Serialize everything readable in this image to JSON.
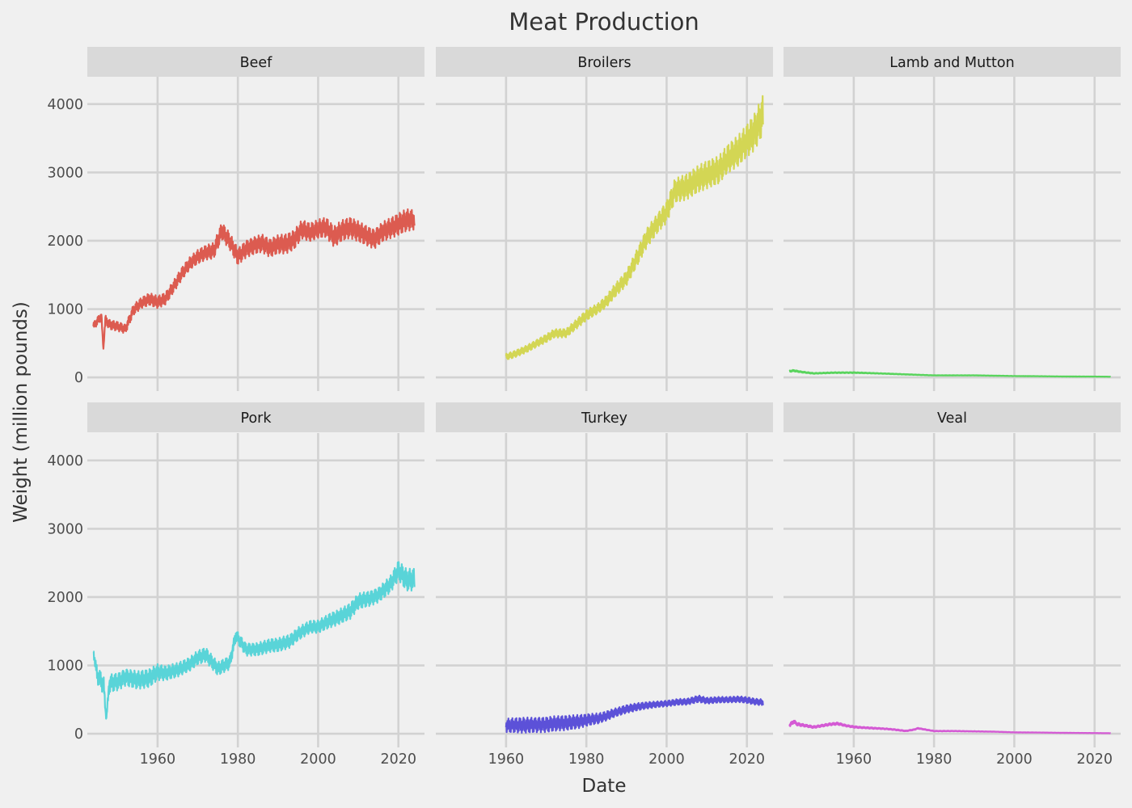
{
  "chart_data": {
    "type": "line",
    "title": "Meat Production",
    "xlabel": "Date",
    "ylabel": "Weight (million pounds)",
    "x_ticks": [
      1960,
      1980,
      2000,
      2020
    ],
    "y_ticks": [
      0,
      1000,
      2000,
      3000,
      4000
    ],
    "xlim": [
      1942.5,
      2026.5
    ],
    "ylim": [
      -200,
      4400
    ],
    "grid": true,
    "legend": "none",
    "facets": [
      {
        "name": "Beef",
        "color": "#dc5b50",
        "x": [
          1944,
          1946,
          1946.5,
          1947,
          1948,
          1950,
          1952,
          1954,
          1956,
          1958,
          1960,
          1962,
          1964,
          1966,
          1968,
          1970,
          1972,
          1974,
          1976,
          1978,
          1980,
          1982,
          1984,
          1986,
          1988,
          1990,
          1992,
          1994,
          1996,
          1998,
          2000,
          2002,
          2004,
          2006,
          2008,
          2010,
          2012,
          2014,
          2016,
          2018,
          2020,
          2022,
          2024
        ],
        "y": [
          750,
          900,
          420,
          850,
          780,
          760,
          720,
          1000,
          1100,
          1150,
          1100,
          1150,
          1320,
          1500,
          1650,
          1750,
          1820,
          1850,
          2150,
          2000,
          1780,
          1900,
          1950,
          1980,
          1900,
          1950,
          1950,
          2000,
          2150,
          2100,
          2150,
          2180,
          2050,
          2150,
          2200,
          2150,
          2100,
          2050,
          2150,
          2200,
          2250,
          2300,
          2300
        ],
        "amplitude": [
          60,
          70,
          0,
          70,
          80,
          80,
          80,
          90,
          90,
          100,
          100,
          100,
          100,
          110,
          110,
          120,
          120,
          130,
          140,
          140,
          140,
          150,
          150,
          150,
          150,
          150,
          160,
          160,
          160,
          160,
          160,
          170,
          170,
          170,
          170,
          170,
          170,
          170,
          170,
          170,
          180,
          180,
          160
        ]
      },
      {
        "name": "Broilers",
        "color": "#d3d654",
        "x": [
          1960,
          1962,
          1965,
          1968,
          1970,
          1972,
          1975,
          1978,
          1980,
          1983,
          1985,
          1987,
          1990,
          1993,
          1995,
          1998,
          2000,
          2002,
          2005,
          2008,
          2010,
          2013,
          2015,
          2018,
          2020,
          2022,
          2024
        ],
        "y": [
          300,
          340,
          420,
          520,
          580,
          650,
          650,
          800,
          900,
          1000,
          1100,
          1250,
          1450,
          1800,
          2050,
          2300,
          2450,
          2750,
          2800,
          2900,
          2950,
          3000,
          3150,
          3300,
          3450,
          3600,
          3850
        ],
        "amplitude": [
          50,
          55,
          60,
          65,
          70,
          70,
          70,
          80,
          90,
          90,
          100,
          110,
          120,
          140,
          160,
          170,
          190,
          200,
          210,
          220,
          230,
          240,
          250,
          260,
          270,
          300,
          330
        ]
      },
      {
        "name": "Lamb and Mutton",
        "color": "#59d45d",
        "x": [
          1944,
          1945,
          1947,
          1950,
          1955,
          1960,
          1965,
          1970,
          1975,
          1980,
          1985,
          1990,
          1995,
          2000,
          2005,
          2010,
          2015,
          2020,
          2024
        ],
        "y": [
          90,
          100,
          80,
          60,
          70,
          70,
          60,
          50,
          40,
          30,
          30,
          30,
          25,
          20,
          18,
          15,
          13,
          12,
          10
        ],
        "amplitude": [
          12,
          12,
          10,
          8,
          8,
          8,
          6,
          5,
          4,
          3,
          3,
          3,
          3,
          2,
          2,
          2,
          2,
          1,
          1
        ]
      },
      {
        "name": "Pork",
        "color": "#59d4d8",
        "x": [
          1944,
          1945,
          1946,
          1946.6,
          1947.2,
          1948,
          1950,
          1952,
          1955,
          1958,
          1960,
          1962,
          1965,
          1968,
          1970,
          1972,
          1975,
          1978,
          1979.5,
          1982,
          1985,
          1988,
          1990,
          1993,
          1995,
          1998,
          2000,
          2003,
          2005,
          2008,
          2010,
          2013,
          2015,
          2018,
          2020,
          2022,
          2024
        ],
        "y": [
          1200,
          850,
          780,
          700,
          200,
          750,
          780,
          850,
          800,
          820,
          900,
          880,
          920,
          1000,
          1100,
          1150,
          950,
          1050,
          1450,
          1250,
          1250,
          1300,
          1300,
          1350,
          1450,
          1550,
          1550,
          1650,
          1700,
          1800,
          1950,
          2000,
          2050,
          2200,
          2400,
          2250,
          2250
        ],
        "amplitude": [
          60,
          130,
          150,
          150,
          0,
          150,
          150,
          150,
          150,
          150,
          130,
          120,
          120,
          120,
          120,
          120,
          110,
          110,
          100,
          110,
          110,
          110,
          110,
          110,
          110,
          110,
          110,
          120,
          120,
          130,
          130,
          130,
          130,
          140,
          160,
          180,
          180
        ]
      },
      {
        "name": "Turkey",
        "color": "#5c51d8",
        "x": [
          1960,
          1962,
          1965,
          1968,
          1970,
          1973,
          1975,
          1978,
          1980,
          1983,
          1985,
          1987,
          1990,
          1993,
          1995,
          1998,
          2000,
          2003,
          2005,
          2008,
          2010,
          2013,
          2015,
          2018,
          2020,
          2022,
          2024
        ],
        "y": [
          120,
          130,
          140,
          150,
          150,
          160,
          160,
          170,
          190,
          210,
          250,
          300,
          360,
          400,
          420,
          440,
          450,
          470,
          470,
          510,
          480,
          490,
          490,
          500,
          490,
          470,
          460
        ],
        "amplitude": [
          110,
          120,
          130,
          130,
          130,
          120,
          120,
          110,
          100,
          90,
          80,
          70,
          65,
          60,
          55,
          50,
          50,
          50,
          50,
          55,
          50,
          50,
          50,
          50,
          50,
          50,
          50
        ]
      },
      {
        "name": "Veal",
        "color": "#d45ad4",
        "x": [
          1944,
          1945,
          1946,
          1948,
          1950,
          1952,
          1954,
          1956,
          1958,
          1960,
          1962,
          1965,
          1968,
          1970,
          1973,
          1975,
          1976,
          1978,
          1980,
          1985,
          1990,
          1995,
          2000,
          2005,
          2010,
          2015,
          2020,
          2024
        ],
        "y": [
          120,
          180,
          140,
          120,
          100,
          120,
          140,
          150,
          120,
          100,
          90,
          80,
          70,
          60,
          40,
          60,
          80,
          60,
          40,
          40,
          35,
          30,
          20,
          18,
          15,
          12,
          10,
          8
        ],
        "amplitude": [
          30,
          30,
          25,
          20,
          20,
          20,
          20,
          20,
          15,
          15,
          12,
          12,
          10,
          10,
          8,
          8,
          8,
          7,
          6,
          5,
          4,
          3,
          3,
          2,
          2,
          2,
          1,
          1
        ]
      }
    ]
  }
}
